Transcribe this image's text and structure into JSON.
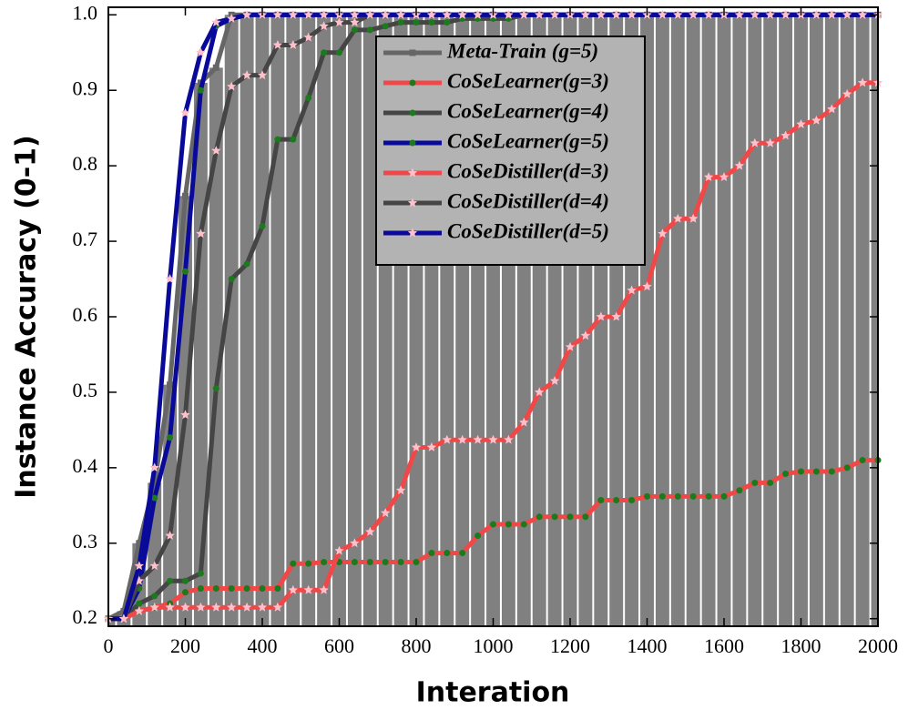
{
  "chart_data": {
    "type": "line",
    "xlabel": "Interation",
    "ylabel": "Instance Accuracy (0-1)",
    "xlim": [
      0,
      2000
    ],
    "ylim": [
      0.19,
      1.01
    ],
    "xticks": [
      0,
      200,
      400,
      600,
      800,
      1000,
      1200,
      1400,
      1600,
      1800,
      2000
    ],
    "yticks": [
      0.2,
      0.3,
      0.4,
      0.5,
      0.6,
      0.7,
      0.8,
      0.9,
      {
        "value": 1,
        "label": "1.0"
      }
    ],
    "x": [
      0,
      40,
      80,
      120,
      160,
      200,
      240,
      280,
      320,
      360,
      400,
      440,
      480,
      520,
      560,
      600,
      640,
      680,
      720,
      760,
      800,
      840,
      880,
      920,
      960,
      1000,
      1040,
      1080,
      1120,
      1160,
      1200,
      1240,
      1280,
      1320,
      1360,
      1400,
      1440,
      1480,
      1520,
      1560,
      1600,
      1640,
      1680,
      1720,
      1760,
      1800,
      1840,
      1880,
      1920,
      1960,
      2000
    ],
    "series": [
      {
        "name": "Meta-Train (g=5)",
        "color": "#666666",
        "marker": "square",
        "marker_color": "#666666",
        "bars": true,
        "bar_color": "#808080",
        "values": [
          0.2,
          0.21,
          0.3,
          0.38,
          0.51,
          0.76,
          0.91,
          0.93,
          1,
          1,
          1,
          1,
          1,
          1,
          1,
          1,
          1,
          1,
          1,
          1,
          1,
          1,
          1,
          1,
          1,
          1,
          1,
          1,
          1,
          1,
          1,
          1,
          1,
          1,
          1,
          1,
          1,
          1,
          1,
          1,
          1,
          1,
          1,
          1,
          1,
          1,
          1,
          1,
          1,
          1,
          1
        ]
      },
      {
        "name": "CoSeLearner(g=3)",
        "color": "#f04848",
        "marker": "circle",
        "marker_color": "#1b7a1b",
        "values": [
          0.2,
          0.2,
          0.21,
          0.215,
          0.22,
          0.235,
          0.24,
          0.24,
          0.24,
          0.24,
          0.24,
          0.24,
          0.273,
          0.273,
          0.275,
          0.275,
          0.275,
          0.275,
          0.275,
          0.275,
          0.275,
          0.287,
          0.287,
          0.287,
          0.31,
          0.325,
          0.325,
          0.325,
          0.335,
          0.335,
          0.335,
          0.335,
          0.357,
          0.357,
          0.357,
          0.362,
          0.362,
          0.362,
          0.362,
          0.362,
          0.362,
          0.37,
          0.38,
          0.38,
          0.392,
          0.395,
          0.395,
          0.395,
          0.4,
          0.41,
          0.41
        ]
      },
      {
        "name": "CoSeLearner(g=4)",
        "color": "#454545",
        "marker": "circle",
        "marker_color": "#1b7a1b",
        "values": [
          0.2,
          0.2,
          0.22,
          0.23,
          0.25,
          0.25,
          0.26,
          0.505,
          0.65,
          0.67,
          0.72,
          0.835,
          0.835,
          0.89,
          0.95,
          0.95,
          0.98,
          0.98,
          0.985,
          0.99,
          0.99,
          0.99,
          0.99,
          0.995,
          0.995,
          0.995,
          0.995,
          1,
          1,
          1,
          1,
          1,
          1,
          1,
          1,
          1,
          1,
          1,
          1,
          1,
          1,
          1,
          1,
          1,
          1,
          1,
          1,
          1,
          1,
          1,
          1
        ]
      },
      {
        "name": "CoSeLearner(g=5)",
        "color": "#0a0a9a",
        "marker": "circle",
        "marker_color": "#1b7a1b",
        "values": [
          0.2,
          0.2,
          0.24,
          0.36,
          0.44,
          0.66,
          0.9,
          0.985,
          0.995,
          1,
          1,
          1,
          1,
          1,
          1,
          1,
          1,
          1,
          1,
          1,
          1,
          1,
          1,
          1,
          1,
          1,
          1,
          1,
          1,
          1,
          1,
          1,
          1,
          1,
          1,
          1,
          1,
          1,
          1,
          1,
          1,
          1,
          1,
          1,
          1,
          1,
          1,
          1,
          1,
          1,
          1
        ]
      },
      {
        "name": "CoSeDistiller(d=3)",
        "color": "#f04848",
        "marker": "star",
        "marker_color": "#ffc0cb",
        "values": [
          0.2,
          0.2,
          0.21,
          0.215,
          0.215,
          0.215,
          0.215,
          0.215,
          0.215,
          0.215,
          0.215,
          0.215,
          0.238,
          0.238,
          0.238,
          0.29,
          0.3,
          0.315,
          0.34,
          0.37,
          0.427,
          0.427,
          0.437,
          0.437,
          0.437,
          0.437,
          0.437,
          0.46,
          0.5,
          0.515,
          0.56,
          0.575,
          0.6,
          0.6,
          0.635,
          0.64,
          0.71,
          0.73,
          0.73,
          0.785,
          0.785,
          0.8,
          0.83,
          0.83,
          0.84,
          0.855,
          0.86,
          0.875,
          0.895,
          0.91,
          0.91
        ]
      },
      {
        "name": "CoSeDistiller(d=4)",
        "color": "#454545",
        "marker": "star",
        "marker_color": "#ffc0cb",
        "values": [
          0.2,
          0.2,
          0.25,
          0.27,
          0.31,
          0.47,
          0.71,
          0.82,
          0.905,
          0.92,
          0.92,
          0.96,
          0.96,
          0.97,
          0.985,
          0.99,
          0.99,
          1,
          1,
          1,
          1,
          1,
          1,
          1,
          1,
          1,
          1,
          1,
          1,
          1,
          1,
          1,
          1,
          1,
          1,
          1,
          1,
          1,
          1,
          1,
          1,
          1,
          1,
          1,
          1,
          1,
          1,
          1,
          1,
          1,
          1
        ]
      },
      {
        "name": "CoSeDistiller(d=5)",
        "color": "#0a0a9a",
        "marker": "star",
        "marker_color": "#ffc0cb",
        "values": [
          0.2,
          0.2,
          0.27,
          0.4,
          0.65,
          0.87,
          0.95,
          0.99,
          0.995,
          1,
          1,
          1,
          1,
          1,
          1,
          1,
          1,
          1,
          1,
          1,
          1,
          1,
          1,
          1,
          1,
          1,
          1,
          1,
          1,
          1,
          1,
          1,
          1,
          1,
          1,
          1,
          1,
          1,
          1,
          1,
          1,
          1,
          1,
          1,
          1,
          1,
          1,
          1,
          1,
          1,
          1
        ]
      }
    ],
    "legend": "upper center"
  }
}
